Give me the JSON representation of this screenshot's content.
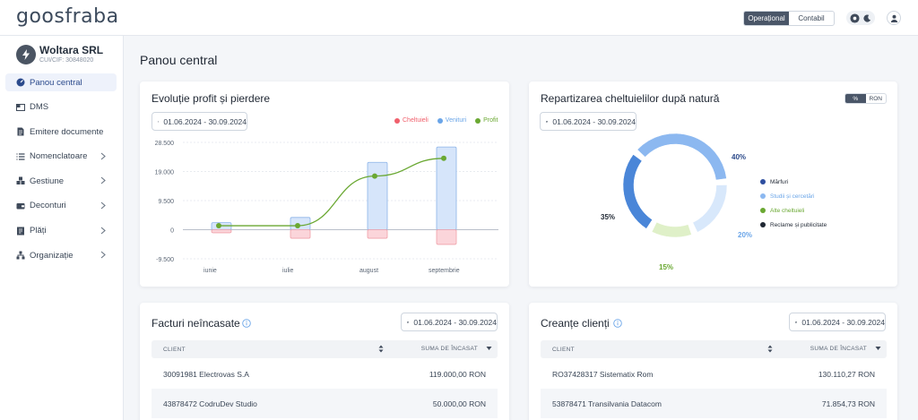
{
  "app": {
    "logo": "goosfraba"
  },
  "topbar": {
    "mode_tabs": [
      "Operațional",
      "Contabil"
    ],
    "active_tab": 0
  },
  "company": {
    "name": "Woltara SRL",
    "cui": "CUI/CIF: 30848020"
  },
  "sidebar": {
    "items": [
      {
        "label": "Panou central",
        "icon": "dashboard-icon",
        "active": true,
        "has_submenu": false
      },
      {
        "label": "DMS",
        "icon": "dms-icon",
        "active": false,
        "has_submenu": false
      },
      {
        "label": "Emitere documente",
        "icon": "document-icon",
        "active": false,
        "has_submenu": false
      },
      {
        "label": "Nomenclatoare",
        "icon": "list-icon",
        "active": false,
        "has_submenu": true
      },
      {
        "label": "Gestiune",
        "icon": "boxes-icon",
        "active": false,
        "has_submenu": true
      },
      {
        "label": "Deconturi",
        "icon": "wallet-icon",
        "active": false,
        "has_submenu": true
      },
      {
        "label": "Plăți",
        "icon": "payment-icon",
        "active": false,
        "has_submenu": true
      },
      {
        "label": "Organizație",
        "icon": "org-chart-icon",
        "active": false,
        "has_submenu": true
      }
    ]
  },
  "page": {
    "title": "Panou central"
  },
  "profit_card": {
    "title": "Evoluție profit și pierdere",
    "date_range": "01.06.2024 - 30.09.2024"
  },
  "expense_card": {
    "title": "Repartizarea cheltuielilor după natură",
    "date_range": "01.06.2024 - 30.09.2024",
    "toggle": [
      "%",
      "RON"
    ]
  },
  "unpaid_card": {
    "title": "Facturi neîncasate",
    "date_range": "01.06.2024 - 30.09.2024",
    "columns": [
      "CLIENT",
      "SUMA DE ÎNCASAT"
    ],
    "rows": [
      {
        "client": "30091981 Electrovas S.A",
        "amount": "119.000,00 RON"
      },
      {
        "client": "43878472 CodruDev Studio",
        "amount": "50.000,00 RON"
      }
    ]
  },
  "receivables_card": {
    "title": "Creanțe clienți",
    "date_range": "01.06.2024 - 30.09.2024",
    "columns": [
      "CLIENT",
      "SUMA DE ÎNCASAT"
    ],
    "rows": [
      {
        "client": "RO37428317 Sistematix Rom",
        "amount": "130.110,27 RON"
      },
      {
        "client": "53878471 Transilvania Datacom",
        "amount": "71.854,73 RON"
      }
    ]
  },
  "chart_data": [
    {
      "type": "bar",
      "title": "Evoluție profit și pierdere",
      "categories": [
        "iunie",
        "iulie",
        "august",
        "septembrie"
      ],
      "yticks": [
        "28.500",
        "19.000",
        "9.500",
        "0",
        "-9.500"
      ],
      "ylim": [
        -9500,
        28500
      ],
      "series": [
        {
          "name": "Cheltuieli",
          "color": "#f0606c",
          "values": [
            -1000,
            -2800,
            -2800,
            -4800
          ]
        },
        {
          "name": "Venituri",
          "color": "#6aa5e8",
          "values": [
            2300,
            4000,
            22000,
            27000
          ]
        },
        {
          "name": "Profit",
          "color": "#6aa832",
          "values": [
            1300,
            1300,
            17500,
            23300
          ]
        }
      ],
      "legend": "top-right",
      "grid": true
    },
    {
      "type": "pie",
      "title": "Repartizarea cheltuielilor după natură",
      "slices": [
        {
          "name": "Mărfuri",
          "value": 40,
          "label": "40%",
          "color": "#8cb8f0",
          "labelColor": "#2c4a8a"
        },
        {
          "name": "Studii și cercetări",
          "value": 20,
          "label": "20%",
          "color": "#d8e8fb",
          "labelColor": "#6aa5e8"
        },
        {
          "name": "Alte cheltuieli",
          "value": 15,
          "label": "15%",
          "color": "#dff0c8",
          "labelColor": "#6aa832"
        },
        {
          "name": "Reclame și publicitate",
          "value": 35,
          "label": "35%",
          "color": "#4a86d8",
          "labelColor": "#1f2733"
        }
      ],
      "legend_colors": [
        "#2e4fa0",
        "#8cb8f0",
        "#6aa832",
        "#1f2733"
      ],
      "legend": "right"
    }
  ]
}
